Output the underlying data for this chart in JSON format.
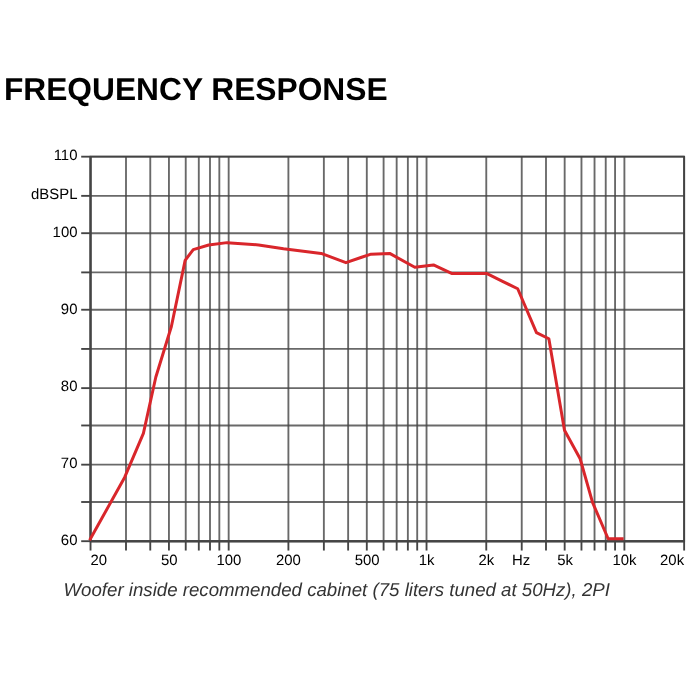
{
  "chart_data": {
    "type": "line",
    "title": "FREQUENCY RESPONSE",
    "x": [
      20,
      30.1,
      37.4,
      43.2,
      51.8,
      60.8,
      66.8,
      80,
      99,
      143,
      191,
      296,
      395,
      474,
      529,
      657,
      880,
      1094,
      1350,
      2028,
      2429,
      2915,
      3626,
      4189,
      5024,
      6027,
      6970,
      8352,
      10000
    ],
    "series": [
      {
        "color": "#d9262b",
        "values": [
          60,
          68.2,
          73.9,
          81.2,
          87.8,
          96.4,
          97.8,
          98.4,
          98.7,
          98.4,
          97.9,
          97.3,
          96.1,
          96.8,
          97.2,
          97.3,
          95.5,
          95.8,
          94.7,
          94.7,
          93.7,
          92.7,
          87,
          86.2,
          74.3,
          70.6,
          64.9,
          60.2,
          60.2
        ]
      }
    ],
    "log": "x",
    "xlim": [
      20,
      20000
    ],
    "xticks": [
      20,
      {
        "value": 30,
        "label": null
      },
      {
        "value": 40,
        "label": null
      },
      50,
      {
        "value": 60,
        "label": null
      },
      {
        "value": 70,
        "label": null
      },
      {
        "value": 80,
        "label": null
      },
      {
        "value": 90,
        "label": null
      },
      100,
      200,
      {
        "value": 300,
        "label": null
      },
      {
        "value": 400,
        "label": null
      },
      500,
      {
        "value": 600,
        "label": null
      },
      {
        "value": 700,
        "label": null
      },
      {
        "value": 800,
        "label": null
      },
      {
        "value": 900,
        "label": null
      },
      {
        "value": 1000,
        "label": "1k"
      },
      {
        "value": 2000,
        "label": "2k"
      },
      {
        "value": 3000,
        "label": "Hz"
      },
      {
        "value": 4000,
        "label": null
      },
      {
        "value": 5000,
        "label": "5k"
      },
      {
        "value": 6000,
        "label": null
      },
      {
        "value": 7000,
        "label": null
      },
      {
        "value": 8000,
        "label": null
      },
      {
        "value": 9000,
        "label": null
      },
      {
        "value": 10000,
        "label": "10k"
      },
      {
        "value": 20000,
        "label": "20k"
      }
    ],
    "ylim": [
      60,
      110
    ],
    "yticks": [
      60,
      {
        "value": 65,
        "label": null
      },
      70,
      {
        "value": 75,
        "label": null
      },
      80,
      {
        "value": 85,
        "label": null
      },
      90,
      {
        "value": 95,
        "label": null
      },
      100,
      {
        "value": 105,
        "label": "dBSPL"
      },
      110
    ],
    "grid": true,
    "marker": "none",
    "line_style": "solid",
    "annotations": [
      "Woofer inside recommended cabinet (75 liters tuned at 50Hz), 2PI"
    ]
  }
}
